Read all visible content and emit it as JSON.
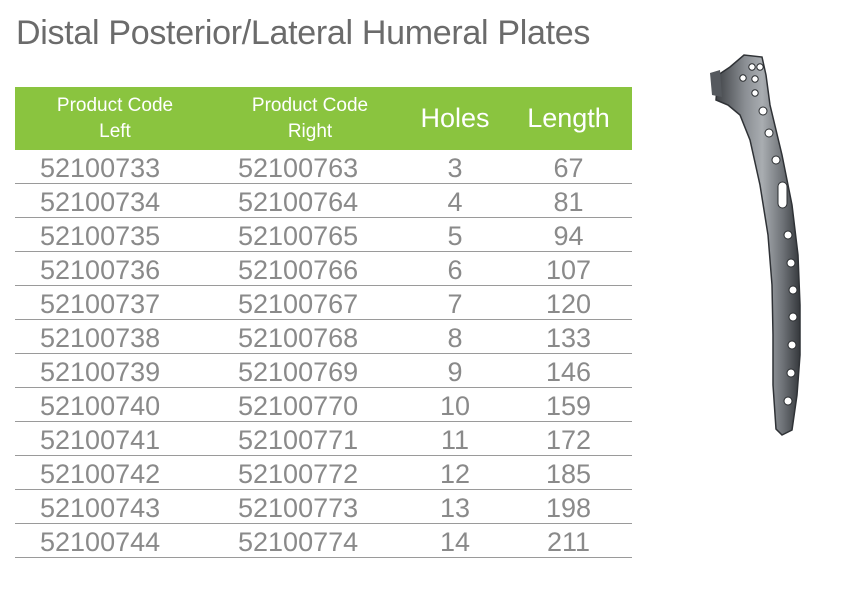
{
  "title": "Distal Posterior/Lateral Humeral Plates",
  "table": {
    "headers": {
      "left_line1": "Product Code",
      "left_line2": "Left",
      "right_line1": "Product Code",
      "right_line2": "Right",
      "holes": "Holes",
      "length": "Length"
    },
    "rows": [
      [
        "52100733",
        "52100763",
        "3",
        "67"
      ],
      [
        "52100734",
        "52100764",
        "4",
        "81"
      ],
      [
        "52100735",
        "52100765",
        "5",
        "94"
      ],
      [
        "52100736",
        "52100766",
        "6",
        "107"
      ],
      [
        "52100737",
        "52100767",
        "7",
        "120"
      ],
      [
        "52100738",
        "52100768",
        "8",
        "133"
      ],
      [
        "52100739",
        "52100769",
        "9",
        "146"
      ],
      [
        "52100740",
        "52100770",
        "10",
        "159"
      ],
      [
        "52100741",
        "52100771",
        "11",
        "172"
      ],
      [
        "52100742",
        "52100772",
        "12",
        "185"
      ],
      [
        "52100743",
        "52100773",
        "13",
        "198"
      ],
      [
        "52100744",
        "52100774",
        "14",
        "211"
      ]
    ]
  },
  "colors": {
    "header_bg": "#8ac43f",
    "header_text": "#ffffff",
    "body_text": "#8a8a8a",
    "title_text": "#6b6b6b"
  }
}
